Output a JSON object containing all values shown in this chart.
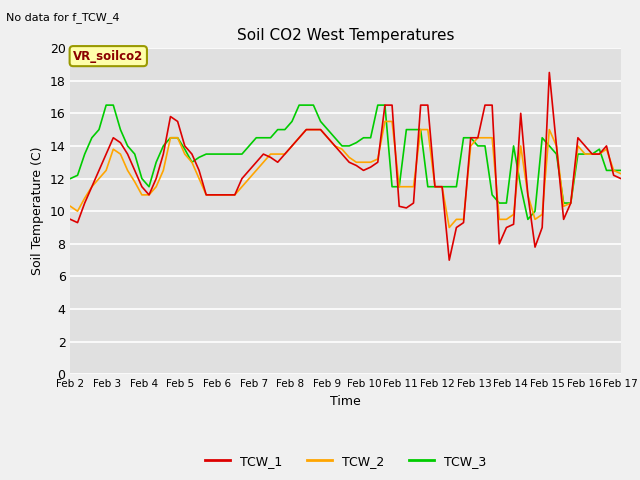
{
  "title": "Soil CO2 West Temperatures",
  "no_data_text": "No data for f_TCW_4",
  "annotation_text": "VR_soilco2",
  "xlabel": "Time",
  "ylabel": "Soil Temperature (C)",
  "ylim": [
    0,
    20
  ],
  "yticks": [
    0,
    2,
    4,
    6,
    8,
    10,
    12,
    14,
    16,
    18,
    20
  ],
  "xtick_labels": [
    "Feb 2",
    "Feb 3",
    "Feb 4",
    "Feb 5",
    "Feb 6",
    "Feb 7",
    "Feb 8",
    "Feb 9",
    "Feb 10",
    "Feb 11",
    "Feb 12",
    "Feb 13",
    "Feb 14",
    "Feb 15",
    "Feb 16",
    "Feb 17"
  ],
  "fig_bg_color": "#f0f0f0",
  "ax_bg_color": "#e0e0e0",
  "grid_color": "#ffffff",
  "line_colors": {
    "TCW_1": "#dd0000",
    "TCW_2": "#ffa500",
    "TCW_3": "#00cc00"
  },
  "line_width": 1.2,
  "TCW_1": [
    9.5,
    9.3,
    10.5,
    11.5,
    12.5,
    13.5,
    14.5,
    14.2,
    13.5,
    12.5,
    11.5,
    11.0,
    12.0,
    13.5,
    15.8,
    15.5,
    14.0,
    13.5,
    12.5,
    11.0,
    11.0,
    11.0,
    11.0,
    11.0,
    12.0,
    12.5,
    13.0,
    13.5,
    13.3,
    13.0,
    13.5,
    14.0,
    14.5,
    15.0,
    15.0,
    15.0,
    14.5,
    14.0,
    13.5,
    13.0,
    12.8,
    12.5,
    12.7,
    13.0,
    16.5,
    16.5,
    10.3,
    10.2,
    10.5,
    16.5,
    16.5,
    11.5,
    11.5,
    7.0,
    9.0,
    9.3,
    14.5,
    14.5,
    16.5,
    16.5,
    8.0,
    9.0,
    9.2,
    16.0,
    11.0,
    7.8,
    9.0,
    18.5,
    14.0,
    9.5,
    10.5,
    14.5,
    14.0,
    13.5,
    13.5,
    14.0,
    12.2,
    12.0
  ],
  "TCW_2": [
    10.3,
    10.0,
    10.8,
    11.5,
    12.0,
    12.5,
    13.8,
    13.5,
    12.5,
    11.8,
    11.0,
    11.0,
    11.5,
    12.5,
    14.5,
    14.5,
    13.5,
    13.0,
    12.0,
    11.0,
    11.0,
    11.0,
    11.0,
    11.0,
    11.5,
    12.0,
    12.5,
    13.0,
    13.5,
    13.5,
    13.5,
    14.0,
    14.5,
    15.0,
    15.0,
    15.0,
    14.5,
    14.0,
    13.8,
    13.3,
    13.0,
    13.0,
    13.0,
    13.2,
    15.5,
    15.5,
    11.5,
    11.5,
    11.5,
    15.0,
    15.0,
    11.5,
    11.5,
    9.0,
    9.5,
    9.5,
    14.0,
    14.5,
    14.5,
    14.5,
    9.5,
    9.5,
    9.8,
    14.0,
    11.0,
    9.5,
    9.8,
    15.0,
    14.0,
    10.3,
    10.5,
    14.0,
    13.5,
    13.5,
    13.5,
    13.8,
    12.5,
    12.3
  ],
  "TCW_3": [
    12.0,
    12.2,
    13.5,
    14.5,
    15.0,
    16.5,
    16.5,
    15.0,
    14.0,
    13.5,
    12.0,
    11.5,
    13.0,
    14.0,
    14.5,
    14.5,
    13.8,
    13.0,
    13.3,
    13.5,
    13.5,
    13.5,
    13.5,
    13.5,
    13.5,
    14.0,
    14.5,
    14.5,
    14.5,
    15.0,
    15.0,
    15.5,
    16.5,
    16.5,
    16.5,
    15.5,
    15.0,
    14.5,
    14.0,
    14.0,
    14.2,
    14.5,
    14.5,
    16.5,
    16.5,
    11.5,
    11.5,
    15.0,
    15.0,
    15.0,
    11.5,
    11.5,
    11.5,
    11.5,
    11.5,
    14.5,
    14.5,
    14.0,
    14.0,
    11.0,
    10.5,
    10.5,
    14.0,
    11.5,
    9.5,
    10.0,
    14.5,
    14.0,
    13.5,
    10.5,
    10.5,
    13.5,
    13.5,
    13.5,
    13.8,
    12.5,
    12.5,
    12.5
  ]
}
